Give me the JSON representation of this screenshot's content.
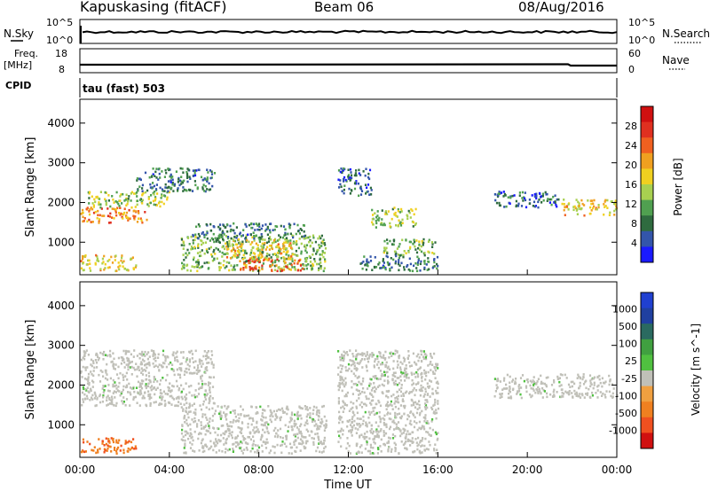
{
  "header": {
    "station": "Kapuskasing (fitACF)",
    "beam": "Beam 06",
    "date": "08/Aug/2016"
  },
  "strip1": {
    "left_label": "N.Sky",
    "left_ticks": [
      "10^5",
      "10^0"
    ],
    "right_label": "N.Search",
    "right_ticks": [
      "10^5",
      "10^0"
    ]
  },
  "strip2": {
    "left_label_top": "Freq.",
    "left_label_unit": "[MHz]",
    "left_ticks": [
      "18",
      "8"
    ],
    "right_label": "Nave",
    "right_ticks": [
      "60",
      "0"
    ]
  },
  "cpid": {
    "label": "CPID",
    "value": "tau (fast) 503"
  },
  "colors": {
    "power_scale": [
      "#1a1aff",
      "#3355aa",
      "#2f6b3f",
      "#50a050",
      "#a8d050",
      "#f0d020",
      "#f0a020",
      "#f06020",
      "#e03020",
      "#d01010"
    ],
    "velocity_scale": [
      "#d01010",
      "#f05020",
      "#f08020",
      "#f0a040",
      "#c0c0b8",
      "#50c040",
      "#40a040",
      "#2a6a60",
      "#2040a0",
      "#2040d0"
    ],
    "ground_scatter": "#c0c0b8"
  },
  "chart_data": [
    {
      "type": "heatmap",
      "panel": "power",
      "ylabel": "Slant Range [km]",
      "yticks": [
        1000,
        2000,
        3000,
        4000
      ],
      "ylim": [
        180,
        4600
      ],
      "xlim": [
        0,
        24
      ],
      "colorbar": {
        "label": "Power [dB]",
        "ticks": [
          4,
          8,
          12,
          16,
          20,
          24,
          28
        ],
        "range": [
          0,
          32
        ]
      },
      "echo_regions": [
        {
          "t": [
            0.0,
            3.0
          ],
          "range": [
            1500,
            1900
          ],
          "level": 22
        },
        {
          "t": [
            0.3,
            4.0
          ],
          "range": [
            1900,
            2300
          ],
          "level": 14
        },
        {
          "t": [
            2.5,
            6.0
          ],
          "range": [
            2300,
            2900
          ],
          "level": 8
        },
        {
          "t": [
            0.0,
            2.5
          ],
          "range": [
            300,
            700
          ],
          "level": 18
        },
        {
          "t": [
            4.5,
            11.0
          ],
          "range": [
            300,
            1200
          ],
          "level": 12
        },
        {
          "t": [
            6.5,
            9.5
          ],
          "range": [
            600,
            1100
          ],
          "level": 18
        },
        {
          "t": [
            7.0,
            10.0
          ],
          "range": [
            300,
            600
          ],
          "level": 24
        },
        {
          "t": [
            5.0,
            10.0
          ],
          "range": [
            1100,
            1500
          ],
          "level": 8
        },
        {
          "t": [
            11.5,
            13.0
          ],
          "range": [
            2200,
            2900
          ],
          "level": 6
        },
        {
          "t": [
            13.0,
            15.0
          ],
          "range": [
            1400,
            1900
          ],
          "level": 14
        },
        {
          "t": [
            13.5,
            16.0
          ],
          "range": [
            700,
            1100
          ],
          "level": 12
        },
        {
          "t": [
            12.5,
            16.0
          ],
          "range": [
            300,
            700
          ],
          "level": 8
        },
        {
          "t": [
            18.5,
            21.5
          ],
          "range": [
            1900,
            2300
          ],
          "level": 6
        },
        {
          "t": [
            21.5,
            24.0
          ],
          "range": [
            1700,
            2100
          ],
          "level": 18
        }
      ]
    },
    {
      "type": "heatmap",
      "panel": "velocity",
      "ylabel": "Slant Range [km]",
      "xlabel": "Time UT",
      "xticks": [
        "00:00",
        "04:00",
        "08:00",
        "12:00",
        "16:00",
        "20:00",
        "00:00"
      ],
      "yticks": [
        1000,
        2000,
        3000,
        4000
      ],
      "ylim": [
        180,
        4600
      ],
      "xlim": [
        0,
        24
      ],
      "colorbar": {
        "label": "Velocity [m s^-1]",
        "ticks": [
          "1000",
          "500",
          "100",
          "25",
          "-25",
          "-100",
          "-500",
          "-1000"
        ]
      },
      "echo_regions": [
        {
          "t": [
            0.0,
            6.0
          ],
          "range": [
            1500,
            2900
          ],
          "kind": "ground"
        },
        {
          "t": [
            4.5,
            11.0
          ],
          "range": [
            300,
            1500
          ],
          "kind": "ground"
        },
        {
          "t": [
            11.5,
            16.0
          ],
          "range": [
            300,
            2900
          ],
          "kind": "ground"
        },
        {
          "t": [
            18.5,
            24.0
          ],
          "range": [
            1700,
            2300
          ],
          "kind": "ground"
        },
        {
          "t": [
            0.0,
            2.5
          ],
          "range": [
            300,
            700
          ],
          "kind": "velocity",
          "value": -300
        }
      ]
    }
  ]
}
